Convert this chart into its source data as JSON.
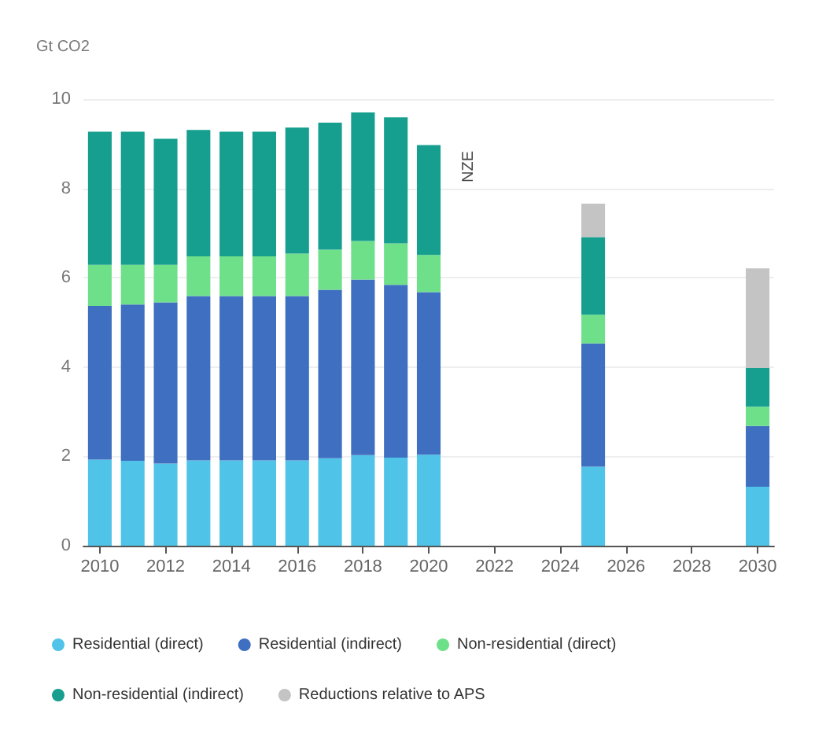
{
  "chart_data": {
    "type": "bar",
    "stacked": true,
    "ylabel": "Gt CO2",
    "categories": [
      "2010",
      null,
      "2012",
      null,
      "2014",
      null,
      "2016",
      null,
      "2018",
      null,
      "2020",
      null,
      "2022",
      null,
      "2024",
      null,
      "2026",
      null,
      "2028",
      null,
      "2030"
    ],
    "series": [
      {
        "name": "Residential (direct)",
        "color": "#4fc3e8",
        "values": [
          1.93,
          1.9,
          1.84,
          1.91,
          1.91,
          1.91,
          1.91,
          1.96,
          2.03,
          1.97,
          2.04,
          null,
          null,
          null,
          null,
          1.77,
          null,
          null,
          null,
          null,
          1.32
        ]
      },
      {
        "name": "Residential (indirect)",
        "color": "#3f6fc0",
        "values": [
          3.44,
          3.5,
          3.61,
          3.68,
          3.68,
          3.68,
          3.68,
          3.77,
          3.93,
          3.87,
          3.64,
          null,
          null,
          null,
          null,
          2.76,
          null,
          null,
          null,
          null,
          1.36
        ]
      },
      {
        "name": "Non-residential (direct)",
        "color": "#6ee08a",
        "values": [
          0.92,
          0.89,
          0.84,
          0.89,
          0.89,
          0.89,
          0.95,
          0.9,
          0.86,
          0.93,
          0.83,
          null,
          null,
          null,
          null,
          0.64,
          null,
          null,
          null,
          null,
          0.43
        ]
      },
      {
        "name": "Non-residential (indirect)",
        "color": "#169e8e",
        "values": [
          2.98,
          2.98,
          2.82,
          2.83,
          2.79,
          2.79,
          2.82,
          2.84,
          2.88,
          2.82,
          2.46,
          null,
          null,
          null,
          null,
          1.74,
          null,
          null,
          null,
          null,
          0.87
        ]
      },
      {
        "name": "Reductions relative to APS",
        "color": "#c4c4c4",
        "values": [
          null,
          null,
          null,
          null,
          null,
          null,
          null,
          null,
          null,
          null,
          null,
          null,
          null,
          null,
          null,
          0.75,
          null,
          null,
          null,
          null,
          2.23
        ]
      }
    ],
    "ylim": [
      0,
      10
    ],
    "yticks": [
      0,
      2,
      4,
      6,
      8,
      10
    ],
    "grid": "y",
    "legend": "bottom",
    "annotations": [
      "NZE"
    ]
  }
}
